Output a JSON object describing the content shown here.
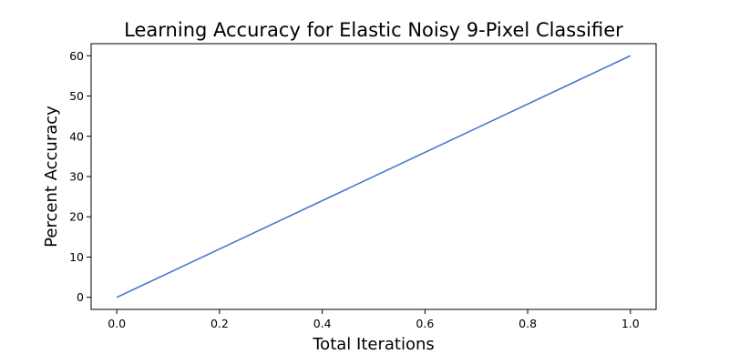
{
  "chart_data": {
    "type": "line",
    "title": "Learning Accuracy for Elastic Noisy 9-Pixel Classifier",
    "xlabel": "Total Iterations",
    "ylabel": "Percent Accuracy",
    "xlim": [
      -0.05,
      1.05
    ],
    "ylim": [
      -3,
      63
    ],
    "xticks": [
      0.0,
      0.2,
      0.4,
      0.6,
      0.8,
      1.0
    ],
    "xtick_labels": [
      "0.0",
      "0.2",
      "0.4",
      "0.6",
      "0.8",
      "1.0"
    ],
    "yticks": [
      0,
      10,
      20,
      30,
      40,
      50,
      60
    ],
    "ytick_labels": [
      "0",
      "10",
      "20",
      "30",
      "40",
      "50",
      "60"
    ],
    "grid": false,
    "series": [
      {
        "color": "#4c78d0",
        "x": [
          0.0,
          1.0
        ],
        "y": [
          0,
          60
        ]
      }
    ]
  }
}
